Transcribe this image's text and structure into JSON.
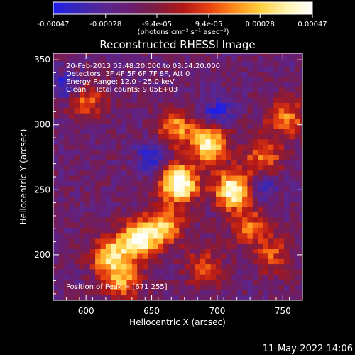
{
  "chart_data": {
    "type": "heatmap",
    "title": "Reconstructed RHESSI Image",
    "xlabel": "Heliocentric X (arcsec)",
    "ylabel": "Heliocentric Y (arcsec)",
    "xlim": [
      575,
      765
    ],
    "ylim": [
      165,
      355
    ],
    "x_ticks": [
      600,
      650,
      700,
      750
    ],
    "y_ticks": [
      200,
      250,
      300,
      350
    ],
    "colorbar": {
      "orientation": "horizontal",
      "location": "top",
      "range": [
        -0.00047,
        0.00047
      ],
      "tick_values": [
        -0.00047,
        -0.00028,
        -9.4e-05,
        9.4e-05,
        0.00028,
        0.00047
      ],
      "tick_labels": [
        "-0.00047",
        "-0.00028",
        "-9.4e-05",
        "9.4e-05",
        "0.00028",
        "0.00047"
      ],
      "units_label": "(photons cm⁻² s⁻¹ asec⁻²)",
      "colormap": [
        "#1e1ee8",
        "#3a26b4",
        "#5a2690",
        "#6a1e6e",
        "#801c40",
        "#b01818",
        "#e84010",
        "#ff8c1a",
        "#ffd040",
        "#fff4b0",
        "#ffffff"
      ]
    },
    "annotations": [
      "20-Feb-2013 03:48:20.000 to 03:54:20.000",
      "Detectors: 3F 4F 5F 6F 7F 8F, Att 0",
      "Energy Range: 12.0 - 25.0 keV",
      "Clean    Total counts: 9.05E+03"
    ],
    "peak_label": "Position of Peak = [671 255]",
    "peak_position": [
      671,
      255
    ],
    "sources": [
      {
        "x": 671,
        "y": 255,
        "intensity": 1.0
      },
      {
        "x": 694,
        "y": 285,
        "intensity": 0.82
      },
      {
        "x": 712,
        "y": 250,
        "intensity": 0.9
      },
      {
        "x": 668,
        "y": 298,
        "intensity": 0.55
      },
      {
        "x": 640,
        "y": 212,
        "intensity": 0.88
      },
      {
        "x": 618,
        "y": 200,
        "intensity": 0.7
      },
      {
        "x": 660,
        "y": 222,
        "intensity": 0.62
      },
      {
        "x": 628,
        "y": 180,
        "intensity": 0.55
      },
      {
        "x": 735,
        "y": 275,
        "intensity": 0.5
      },
      {
        "x": 752,
        "y": 305,
        "intensity": 0.52
      },
      {
        "x": 600,
        "y": 318,
        "intensity": 0.45
      },
      {
        "x": 725,
        "y": 222,
        "intensity": 0.45
      },
      {
        "x": 690,
        "y": 190,
        "intensity": 0.4
      },
      {
        "x": 742,
        "y": 200,
        "intensity": 0.38
      }
    ],
    "negative_regions": [
      {
        "x": 650,
        "y": 275
      },
      {
        "x": 736,
        "y": 253
      },
      {
        "x": 585,
        "y": 330
      },
      {
        "x": 700,
        "y": 310
      }
    ]
  },
  "footer_timestamp": "11-May-2022 14:06"
}
